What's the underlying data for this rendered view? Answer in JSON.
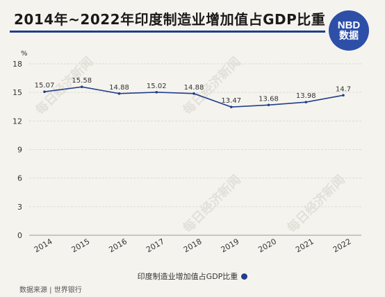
{
  "header": {
    "title": "2014年~2022年印度制造业增加值占GDP比重"
  },
  "logo": {
    "line1": "NBD",
    "line2": "数据"
  },
  "watermark": {
    "text": "每日经济新闻"
  },
  "chart_data": {
    "type": "line",
    "title": "2014年~2022年印度制造业增加值占GDP比重",
    "unit_label": "%",
    "xlabel": "",
    "ylabel": "%",
    "x": [
      "2014",
      "2015",
      "2016",
      "2017",
      "2018",
      "2019",
      "2020",
      "2021",
      "2022"
    ],
    "ylim": [
      0,
      18
    ],
    "yticks": [
      0,
      3,
      6,
      9,
      12,
      15,
      18
    ],
    "grid": "horizontal",
    "legend_position": "bottom-center",
    "series": [
      {
        "name": "印度制造业增加值占GDP比重",
        "color": "#1f3f8c",
        "values": [
          15.07,
          15.58,
          14.88,
          15.02,
          14.88,
          13.47,
          13.68,
          13.98,
          14.7
        ],
        "labels": [
          "15.07",
          "15.58",
          "14.88",
          "15.02",
          "14.88",
          "13.47",
          "13.68",
          "13.98",
          "14.7"
        ]
      }
    ]
  },
  "legend": {
    "label": "印度制造业增加值占GDP比重"
  },
  "source": {
    "text": "数据来源 | 世界银行"
  }
}
